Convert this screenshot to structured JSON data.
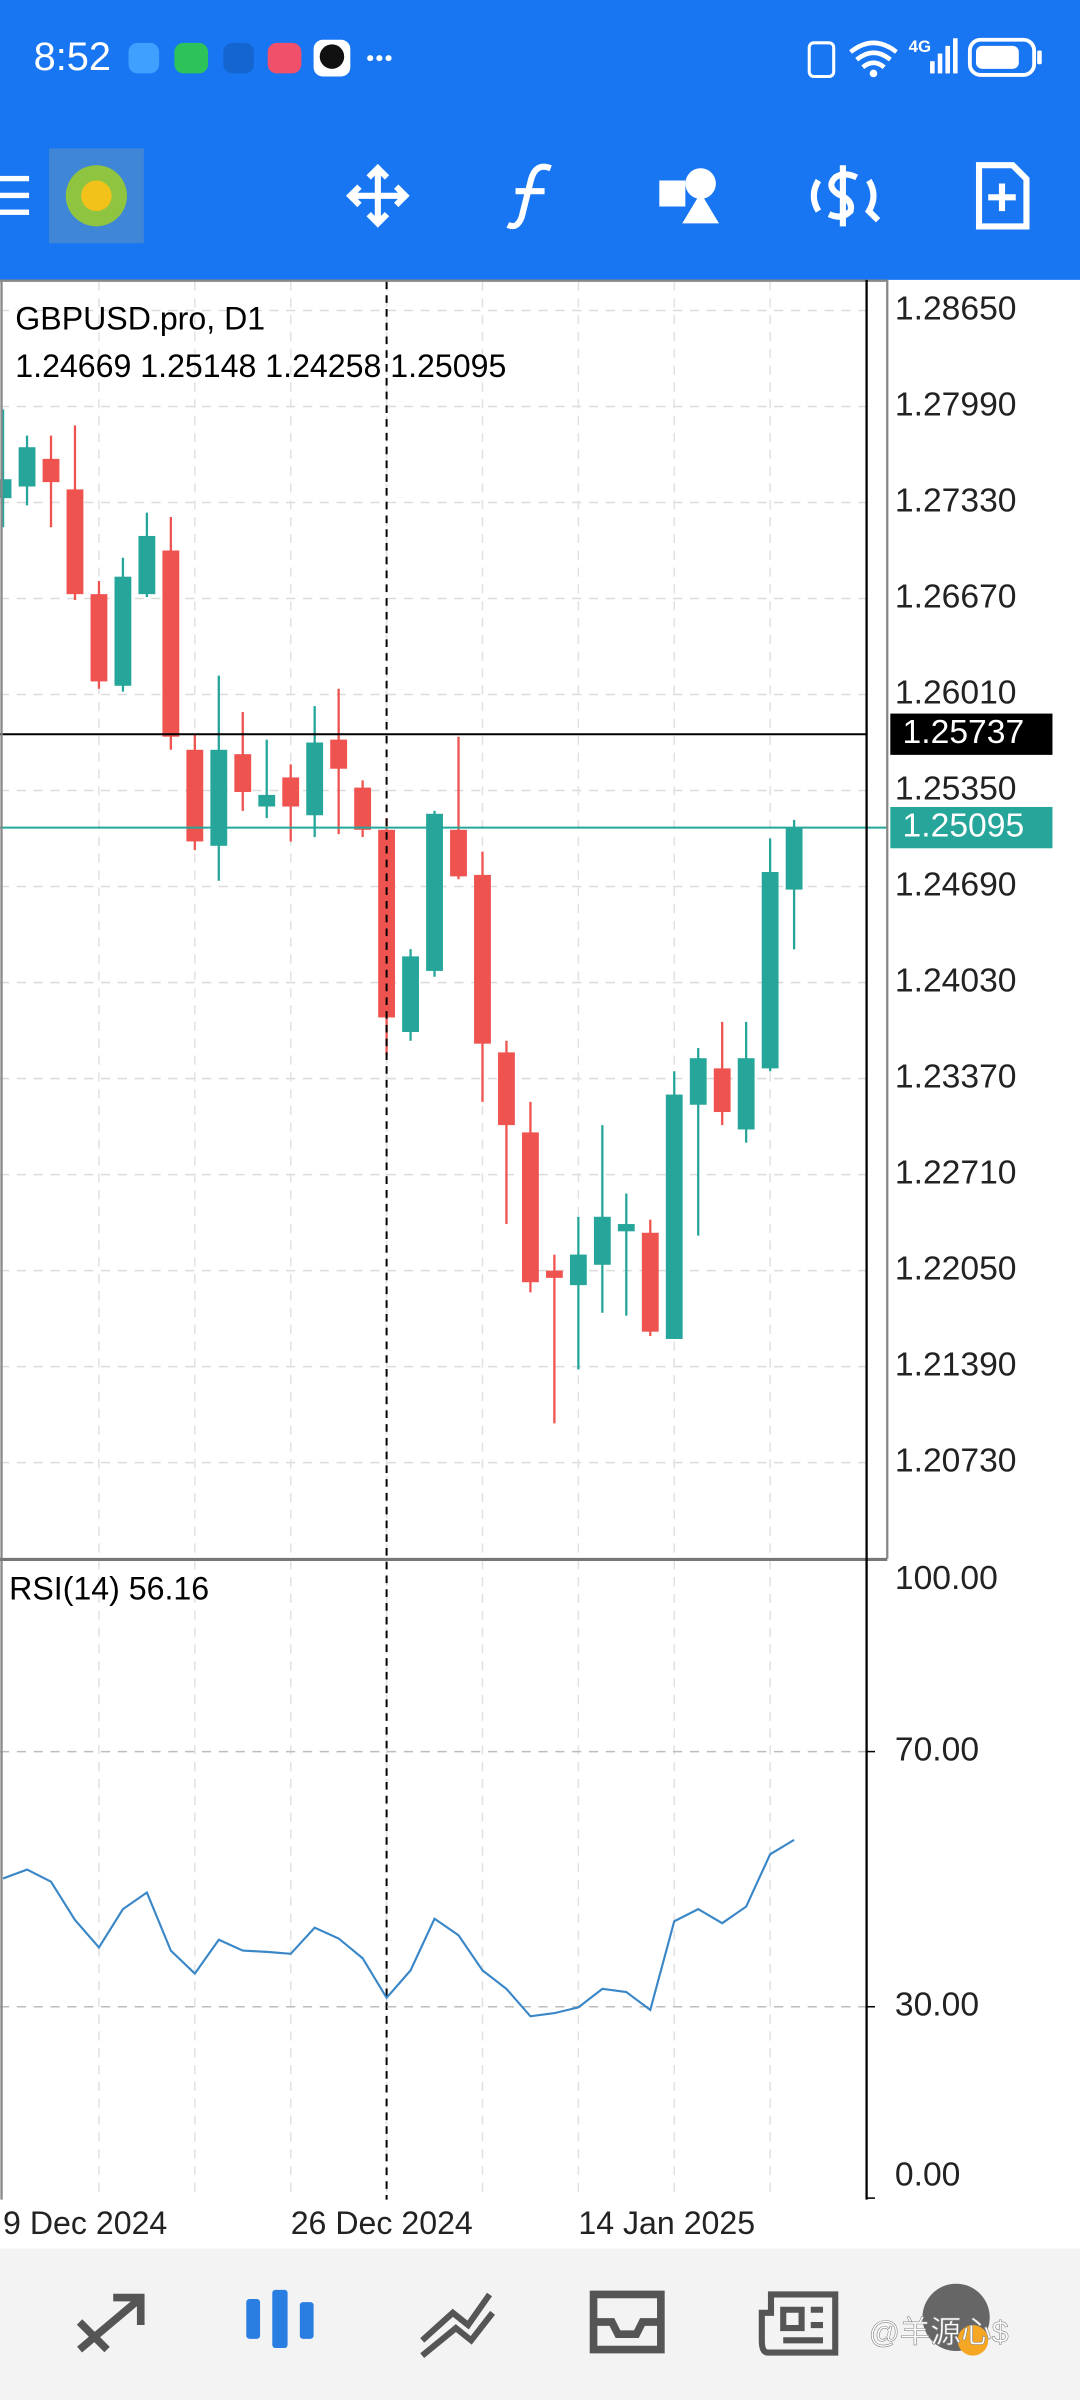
{
  "status_bar": {
    "time": "8:52",
    "network": "4G"
  },
  "chart_data": [
    {
      "type": "candlestick",
      "title": "GBPUSD.pro, D1",
      "subtitle": "1.24669 1.25148 1.24258 1.25095",
      "categories": [
        "9 Dec 2024",
        null,
        null,
        null,
        null,
        null,
        null,
        null,
        null,
        null,
        null,
        null,
        "26 Dec 2024",
        null,
        null,
        null,
        null,
        null,
        null,
        null,
        null,
        null,
        null,
        null,
        "14 Jan 2025",
        null,
        null,
        null,
        null,
        null,
        null,
        null,
        null,
        null
      ],
      "open": [
        1.2736,
        1.2744,
        1.2763,
        1.2742,
        1.267,
        1.2607,
        1.267,
        1.27,
        1.2563,
        1.2497,
        1.256,
        1.2524,
        1.2544,
        1.2518,
        1.257,
        1.2537,
        1.2508,
        1.2369,
        1.2411,
        1.2508,
        1.2477,
        1.2355,
        1.23,
        1.2205,
        1.2195,
        1.2209,
        1.2232,
        1.2231,
        1.2158,
        1.2319,
        1.2344,
        1.2302,
        1.2344,
        1.24669
      ],
      "high": [
        1.2797,
        1.2779,
        1.2779,
        1.2786,
        1.2679,
        1.2695,
        1.2726,
        1.2723,
        1.2574,
        1.2614,
        1.2589,
        1.257,
        1.2553,
        1.2593,
        1.2605,
        1.2542,
        1.2516,
        1.2426,
        1.2521,
        1.2572,
        1.2493,
        1.2363,
        1.2321,
        1.2216,
        1.2242,
        1.2305,
        1.2258,
        1.224,
        1.2342,
        1.2358,
        1.2376,
        1.2376,
        1.2502,
        1.25148
      ],
      "low": [
        1.2716,
        1.2731,
        1.2716,
        1.2666,
        1.2605,
        1.2603,
        1.2668,
        1.2563,
        1.2494,
        1.2473,
        1.2521,
        1.2516,
        1.25,
        1.2503,
        1.2505,
        1.2503,
        1.2353,
        1.2363,
        1.2407,
        1.2474,
        1.2321,
        1.2237,
        1.219,
        1.21,
        1.2137,
        1.2176,
        1.2174,
        1.216,
        1.2158,
        1.2229,
        1.2305,
        1.2293,
        1.2342,
        1.24258
      ],
      "close": [
        1.2749,
        1.2771,
        1.2747,
        1.267,
        1.261,
        1.2682,
        1.271,
        1.2572,
        1.25,
        1.2563,
        1.2534,
        1.2532,
        1.2524,
        1.2568,
        1.255,
        1.2508,
        1.2379,
        1.2421,
        1.2519,
        1.2476,
        1.2361,
        1.2305,
        1.2197,
        1.22,
        1.2216,
        1.2242,
        1.2237,
        1.2163,
        1.2326,
        1.2351,
        1.2314,
        1.2351,
        1.2479,
        1.25095
      ],
      "up_color": "#26a69a",
      "down_color": "#ef5350",
      "ylim": [
        1.2008,
        1.2886
      ],
      "yticks": [
        {
          "value": 1.2865,
          "label": "1.28650"
        },
        {
          "value": 1.2799,
          "label": "1.27990"
        },
        {
          "value": 1.2733,
          "label": "1.27330"
        },
        {
          "value": 1.2667,
          "label": "1.26670"
        },
        {
          "value": 1.2601,
          "label": "1.26010"
        },
        {
          "value": 1.2535,
          "label": "1.25350"
        },
        {
          "value": 1.2469,
          "label": "1.24690"
        },
        {
          "value": 1.2403,
          "label": "1.24030"
        },
        {
          "value": 1.2337,
          "label": "1.23370"
        },
        {
          "value": 1.2271,
          "label": "1.22710"
        },
        {
          "value": 1.2205,
          "label": "1.22050"
        },
        {
          "value": 1.2139,
          "label": "1.21390"
        },
        {
          "value": 1.2073,
          "label": "1.20730"
        }
      ],
      "grid": true,
      "price_lines": [
        {
          "value": 1.25737,
          "label": "1.25737",
          "color": "#000000"
        },
        {
          "value": 1.25095,
          "label": "1.25095",
          "color": "#26a69a"
        }
      ]
    },
    {
      "type": "line",
      "title": "RSI(14) 56.16",
      "values": [
        50.1,
        51.5,
        49.6,
        43.6,
        39.3,
        45.3,
        47.9,
        38.8,
        35.2,
        40.5,
        38.8,
        38.6,
        38.3,
        42.4,
        40.7,
        37.6,
        31.4,
        35.7,
        43.8,
        41.2,
        35.7,
        32.8,
        28.5,
        29.0,
        29.9,
        32.8,
        32.3,
        29.5,
        43.4,
        45.3,
        43.1,
        45.7,
        53.9,
        56.16
      ],
      "color": "#3a87c8",
      "ylim": [
        0,
        100
      ],
      "yticks": [
        {
          "value": 100,
          "label": "100.00"
        },
        {
          "value": 70,
          "label": "70.00"
        },
        {
          "value": 30,
          "label": "30.00"
        },
        {
          "value": 0,
          "label": "0.00"
        }
      ],
      "levels": [
        70,
        30
      ]
    }
  ],
  "watermark": "@羊源心$"
}
